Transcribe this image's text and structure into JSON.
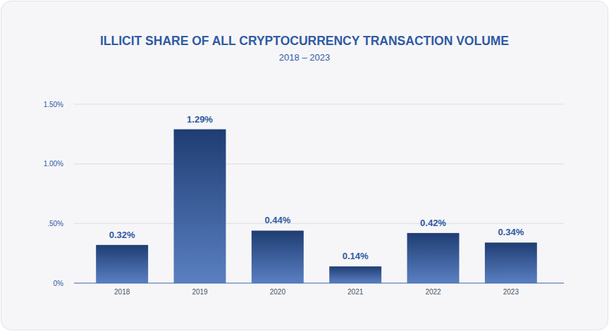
{
  "chart_data": {
    "type": "bar",
    "title": "ILLICIT SHARE OF ALL CRYPTOCURRENCY TRANSACTION VOLUME",
    "subtitle": "2018 – 2023",
    "categories": [
      "2018",
      "2019",
      "2020",
      "2021",
      "2022",
      "2023"
    ],
    "values": [
      0.32,
      1.29,
      0.44,
      0.14,
      0.42,
      0.34
    ],
    "value_labels": [
      "0.32%",
      "1.29%",
      "0.44%",
      "0.14%",
      "0.42%",
      "0.34%"
    ],
    "color": "#1f3d73",
    "ylim": [
      0,
      1.5
    ],
    "yticks": [
      {
        "value": 0,
        "label": "0%"
      },
      {
        "value": 0.5,
        "label": ".50%"
      },
      {
        "value": 1,
        "label": "1.00%"
      },
      {
        "value": 1.5,
        "label": "1.50%"
      }
    ],
    "grid": true,
    "data_labels": true
  }
}
